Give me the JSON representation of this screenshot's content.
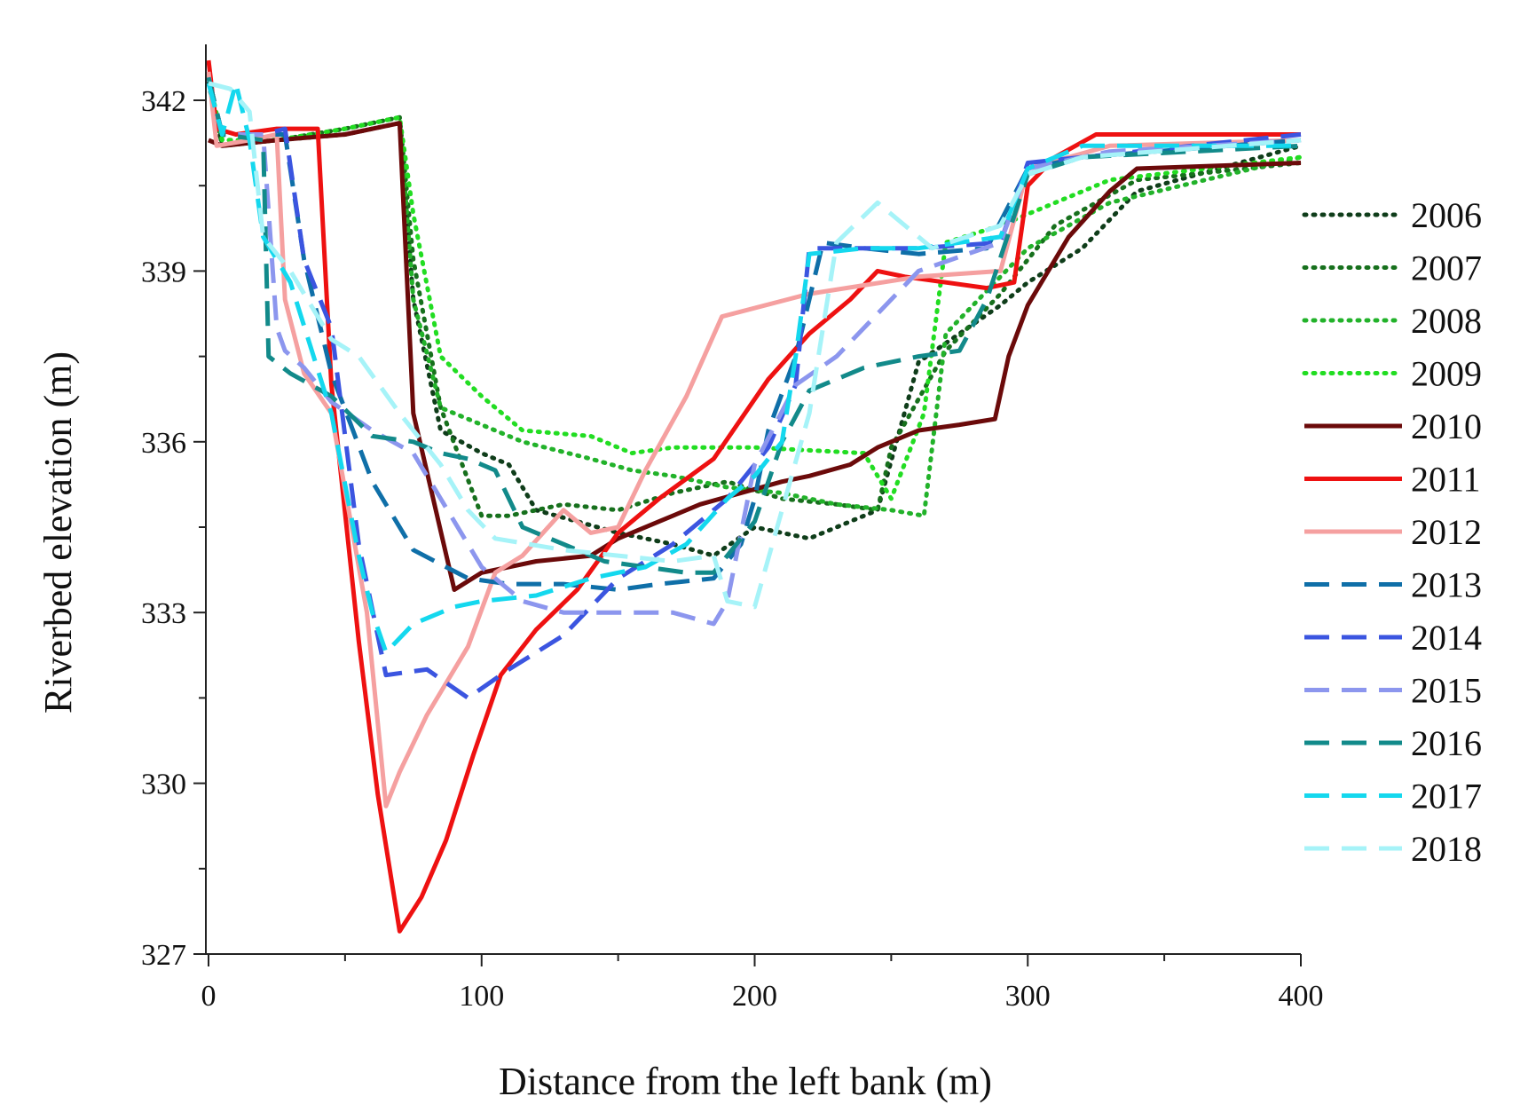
{
  "chart_data": {
    "type": "line",
    "title": "",
    "xlabel": "Distance from the left bank (m)",
    "ylabel": "Riverbed elevation (m)",
    "xlim": [
      0,
      400
    ],
    "ylim": [
      327,
      342.5
    ],
    "x_ticks": [
      0,
      100,
      200,
      300,
      400
    ],
    "x_tick_labels": [
      "0",
      "100",
      "200",
      "300",
      "400"
    ],
    "y_ticks": [
      327,
      330,
      333,
      336,
      339,
      342
    ],
    "y_tick_labels": [
      "327",
      "330",
      "333",
      "336",
      "339",
      "342"
    ],
    "grid": false,
    "legend_position": "right",
    "series": [
      {
        "name": "2006",
        "color": "#0f3d1a",
        "dash": "dotted",
        "x": [
          0,
          5,
          25,
          50,
          70,
          75,
          85,
          100,
          110,
          120,
          135,
          150,
          170,
          185,
          200,
          220,
          235,
          245,
          260,
          290,
          300,
          320,
          340,
          400
        ],
        "y": [
          342.3,
          341.2,
          341.3,
          341.4,
          341.6,
          338.5,
          336.2,
          335.8,
          335.6,
          334.8,
          334.6,
          334.4,
          334.2,
          334.0,
          334.5,
          334.3,
          334.6,
          334.8,
          337.4,
          338.4,
          338.8,
          339.4,
          340.4,
          341.2
        ]
      },
      {
        "name": "2007",
        "color": "#17701d",
        "dash": "dotted",
        "x": [
          0,
          5,
          25,
          50,
          70,
          75,
          85,
          100,
          110,
          130,
          150,
          170,
          190,
          210,
          230,
          245,
          250,
          270,
          290,
          310,
          340,
          400
        ],
        "y": [
          342.4,
          341.2,
          341.3,
          341.5,
          341.7,
          339.2,
          336.6,
          334.7,
          334.7,
          334.9,
          334.8,
          335.1,
          335.3,
          335.0,
          334.9,
          334.8,
          335.9,
          337.6,
          338.6,
          339.8,
          340.6,
          340.9
        ]
      },
      {
        "name": "2008",
        "color": "#22b22a",
        "dash": "dotted",
        "x": [
          0,
          5,
          25,
          50,
          70,
          75,
          85,
          100,
          115,
          140,
          155,
          170,
          190,
          210,
          230,
          250,
          262,
          270,
          300,
          330,
          400
        ],
        "y": [
          342.4,
          341.3,
          341.3,
          341.5,
          341.7,
          338.5,
          336.6,
          336.3,
          336.0,
          335.7,
          335.5,
          335.4,
          335.2,
          335.1,
          334.9,
          334.8,
          334.7,
          337.9,
          339.4,
          340.2,
          341.0
        ]
      },
      {
        "name": "2009",
        "color": "#22dd22",
        "dash": "dotted",
        "x": [
          0,
          5,
          25,
          50,
          70,
          75,
          85,
          100,
          115,
          140,
          155,
          170,
          200,
          240,
          250,
          262,
          270,
          290,
          330,
          400
        ],
        "y": [
          342.4,
          341.3,
          341.3,
          341.5,
          341.7,
          340.0,
          337.5,
          336.8,
          336.2,
          336.1,
          335.8,
          335.9,
          335.9,
          335.8,
          335.0,
          336.5,
          339.5,
          339.8,
          340.6,
          341.0
        ]
      },
      {
        "name": "2010",
        "color": "#6b0a0a",
        "dash": "solid",
        "x": [
          0,
          5,
          25,
          50,
          70,
          75,
          90,
          100,
          110,
          120,
          140,
          150,
          165,
          180,
          195,
          210,
          220,
          235,
          245,
          260,
          275,
          288,
          293,
          300,
          315,
          330,
          340,
          400
        ],
        "y": [
          341.3,
          341.2,
          341.3,
          341.4,
          341.6,
          336.5,
          333.4,
          333.7,
          333.8,
          333.9,
          334.0,
          334.3,
          334.6,
          334.9,
          335.1,
          335.3,
          335.4,
          335.6,
          335.9,
          336.2,
          336.3,
          336.4,
          337.5,
          338.4,
          339.6,
          340.4,
          340.8,
          340.9
        ]
      },
      {
        "name": "2011",
        "color": "#ee1111",
        "dash": "solid",
        "x": [
          0,
          3,
          10,
          25,
          40,
          45,
          55,
          62,
          70,
          78,
          87,
          97,
          107,
          120,
          135,
          150,
          165,
          185,
          205,
          220,
          235,
          245,
          255,
          270,
          285,
          295,
          300,
          310,
          325,
          350,
          400
        ],
        "y": [
          342.7,
          341.5,
          341.4,
          341.5,
          341.5,
          337.0,
          332.5,
          329.8,
          327.4,
          328.0,
          329.0,
          330.5,
          331.9,
          332.7,
          333.4,
          334.4,
          335.0,
          335.7,
          337.1,
          337.9,
          338.5,
          339.0,
          338.9,
          338.8,
          338.7,
          338.8,
          340.5,
          341.0,
          341.4,
          341.4,
          341.4
        ]
      },
      {
        "name": "2012",
        "color": "#f5a0a0",
        "dash": "solid",
        "x": [
          0,
          3,
          15,
          25,
          28,
          35,
          45,
          58,
          65,
          70,
          80,
          95,
          105,
          115,
          130,
          140,
          150,
          160,
          175,
          188,
          220,
          260,
          290,
          300,
          330,
          400
        ],
        "y": [
          342.5,
          341.2,
          341.3,
          341.4,
          338.5,
          337.2,
          336.5,
          333.0,
          329.6,
          330.2,
          331.2,
          332.4,
          333.7,
          334.0,
          334.8,
          334.4,
          334.5,
          335.5,
          336.8,
          338.2,
          338.6,
          338.9,
          339.0,
          340.8,
          341.2,
          341.3
        ]
      },
      {
        "name": "2013",
        "color": "#0f6fa8",
        "dash": "dashed",
        "x": [
          0,
          5,
          20,
          28,
          35,
          45,
          60,
          75,
          95,
          110,
          130,
          150,
          165,
          185,
          195,
          200,
          205,
          215,
          225,
          240,
          260,
          285,
          300,
          320,
          400
        ],
        "y": [
          342.4,
          341.4,
          341.4,
          341.4,
          339.2,
          337.2,
          335.3,
          334.1,
          333.6,
          333.5,
          333.5,
          333.4,
          333.5,
          333.6,
          334.2,
          335.0,
          336.2,
          337.5,
          339.5,
          339.4,
          339.3,
          339.4,
          340.8,
          341.0,
          341.3
        ]
      },
      {
        "name": "2014",
        "color": "#3b55e0",
        "dash": "dashed",
        "x": [
          0,
          5,
          20,
          28,
          35,
          45,
          55,
          65,
          80,
          95,
          110,
          130,
          150,
          170,
          190,
          205,
          215,
          220,
          240,
          260,
          290,
          300,
          320,
          400
        ],
        "y": [
          342.4,
          341.4,
          341.4,
          341.5,
          339.2,
          338.0,
          334.2,
          331.9,
          332.0,
          331.5,
          332.0,
          332.6,
          333.6,
          334.2,
          335.0,
          335.9,
          337.0,
          339.4,
          339.4,
          339.4,
          339.5,
          340.9,
          341.0,
          341.4
        ]
      },
      {
        "name": "2015",
        "color": "#8c96ee",
        "dash": "dashed",
        "x": [
          0,
          5,
          20,
          25,
          28,
          35,
          45,
          60,
          75,
          85,
          100,
          115,
          130,
          150,
          170,
          185,
          190,
          200,
          215,
          230,
          260,
          290,
          300,
          330,
          400
        ],
        "y": [
          342.4,
          341.4,
          341.4,
          338.0,
          337.6,
          337.3,
          336.7,
          336.2,
          335.8,
          335.0,
          333.8,
          333.2,
          333.0,
          333.0,
          333.0,
          332.8,
          333.2,
          335.6,
          337.0,
          337.5,
          339.0,
          339.5,
          340.8,
          341.1,
          341.3
        ]
      },
      {
        "name": "2016",
        "color": "#128a8a",
        "dash": "dashed",
        "x": [
          0,
          5,
          20,
          22,
          30,
          45,
          60,
          75,
          85,
          95,
          105,
          115,
          130,
          145,
          160,
          175,
          185,
          200,
          210,
          220,
          240,
          260,
          275,
          285,
          300,
          320,
          400
        ],
        "y": [
          342.4,
          341.4,
          341.3,
          337.5,
          337.2,
          336.8,
          336.1,
          336.0,
          335.8,
          335.7,
          335.5,
          334.5,
          334.2,
          333.9,
          333.8,
          333.7,
          333.7,
          334.6,
          336.0,
          336.9,
          337.3,
          337.5,
          337.6,
          338.5,
          340.7,
          341.0,
          341.2
        ]
      },
      {
        "name": "2017",
        "color": "#14d8ee",
        "dash": "dashed",
        "x": [
          0,
          5,
          10,
          15,
          20,
          30,
          45,
          55,
          60,
          65,
          75,
          90,
          100,
          120,
          140,
          160,
          175,
          190,
          200,
          210,
          215,
          220,
          240,
          260,
          290,
          300,
          320,
          340,
          400
        ],
        "y": [
          342.3,
          341.4,
          342.3,
          341.3,
          339.6,
          338.8,
          336.5,
          334.0,
          333.0,
          332.3,
          332.8,
          333.1,
          333.2,
          333.3,
          333.6,
          333.8,
          334.2,
          335.0,
          335.4,
          336.0,
          337.5,
          339.3,
          339.4,
          339.4,
          339.6,
          340.8,
          341.2,
          341.2,
          341.2
        ]
      },
      {
        "name": "2018",
        "color": "#a6f3f8",
        "dash": "dashed",
        "x": [
          0,
          8,
          15,
          20,
          30,
          45,
          55,
          70,
          85,
          95,
          105,
          130,
          150,
          170,
          185,
          190,
          200,
          210,
          220,
          230,
          245,
          265,
          290,
          300,
          320,
          400
        ],
        "y": [
          342.3,
          342.2,
          341.8,
          339.6,
          339.0,
          337.8,
          337.5,
          336.5,
          335.6,
          334.8,
          334.3,
          334.1,
          334.0,
          333.9,
          334.0,
          333.2,
          333.1,
          334.8,
          336.5,
          339.5,
          340.2,
          339.4,
          339.8,
          340.7,
          341.0,
          341.3
        ]
      }
    ]
  }
}
